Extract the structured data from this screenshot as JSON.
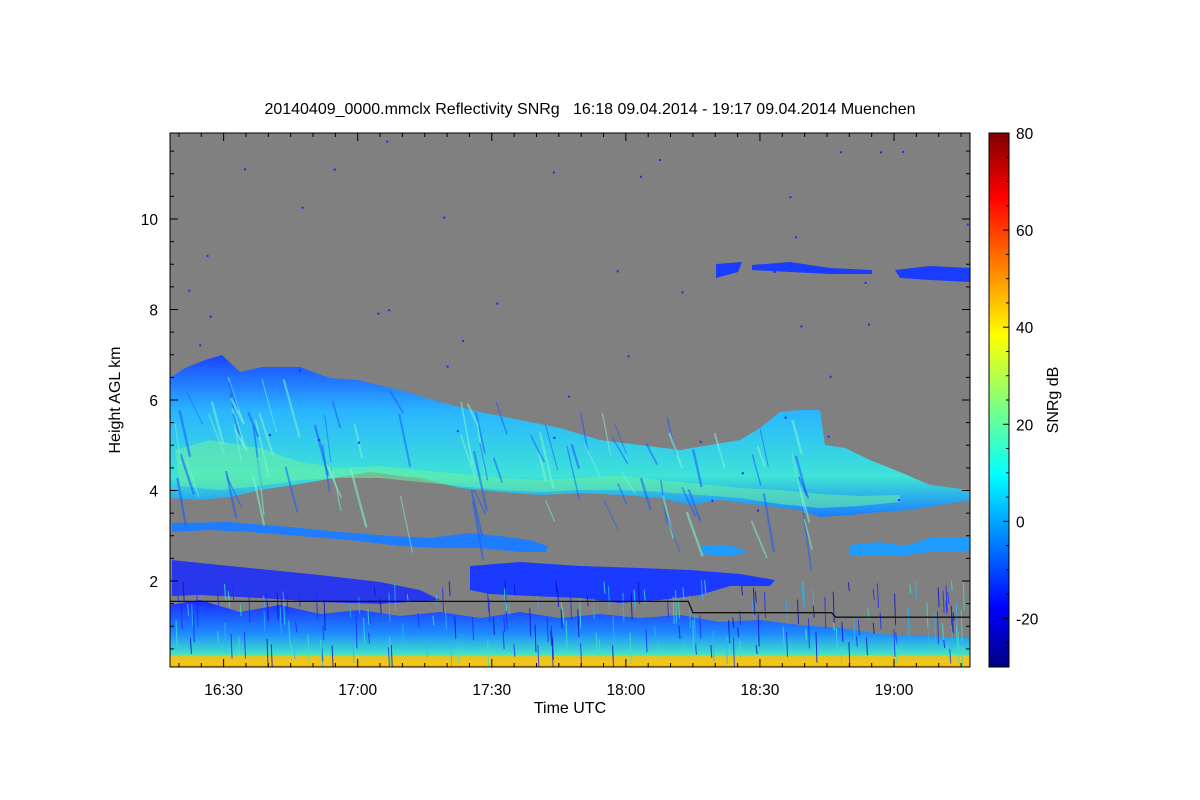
{
  "chart_data": {
    "type": "heatmap",
    "title": "20140409_0000.mmclx Reflectivity SNRg   16:18 09.04.2014 - 19:17 09.04.2014 Muenchen",
    "xlabel": "Time UTC",
    "ylabel": "Height AGL km",
    "xlim": [
      "16:18",
      "19:17"
    ],
    "ylim": [
      0.1,
      11.9
    ],
    "x_ticks": [
      "16:30",
      "17:00",
      "17:30",
      "18:00",
      "18:30",
      "19:00"
    ],
    "y_ticks": [
      2,
      4,
      6,
      8,
      10
    ],
    "background_color": "#808080",
    "colorbar": {
      "label": "SNRg dB",
      "range": [
        -30,
        80
      ],
      "ticks": [
        -20,
        0,
        20,
        40,
        60,
        80
      ],
      "colormap": "jet"
    },
    "features": [
      {
        "name": "main cloud layer",
        "time_range": [
          "16:18",
          "19:17"
        ],
        "base_km": [
          3.9,
          3.7
        ],
        "top_km": [
          7.0,
          4.0
        ],
        "snr_db_peak": 15
      },
      {
        "name": "upper cirrus layer",
        "time_range": [
          "18:20",
          "19:17"
        ],
        "height_km": [
          8.7,
          9.1
        ],
        "snr_db_peak": -15
      },
      {
        "name": "mid-level layer",
        "time_range": [
          "16:18",
          "17:45"
        ],
        "height_km": [
          2.8,
          3.4
        ],
        "snr_db_peak": 5
      },
      {
        "name": "fall streaks",
        "time_range": [
          "17:20",
          "18:25"
        ],
        "height_km": [
          1.5,
          2.4
        ],
        "snr_db_peak": -5
      },
      {
        "name": "boundary layer clutter",
        "time_range": [
          "16:18",
          "19:17"
        ],
        "height_km": [
          0.1,
          1.5
        ],
        "snr_db_peak": 45
      }
    ],
    "boundary_line_km": [
      {
        "t": "16:18",
        "h": 1.55
      },
      {
        "t": "18:14",
        "h": 1.55
      },
      {
        "t": "18:15",
        "h": 1.3
      },
      {
        "t": "18:46",
        "h": 1.3
      },
      {
        "t": "18:47",
        "h": 1.2
      },
      {
        "t": "19:17",
        "h": 1.2
      }
    ]
  }
}
